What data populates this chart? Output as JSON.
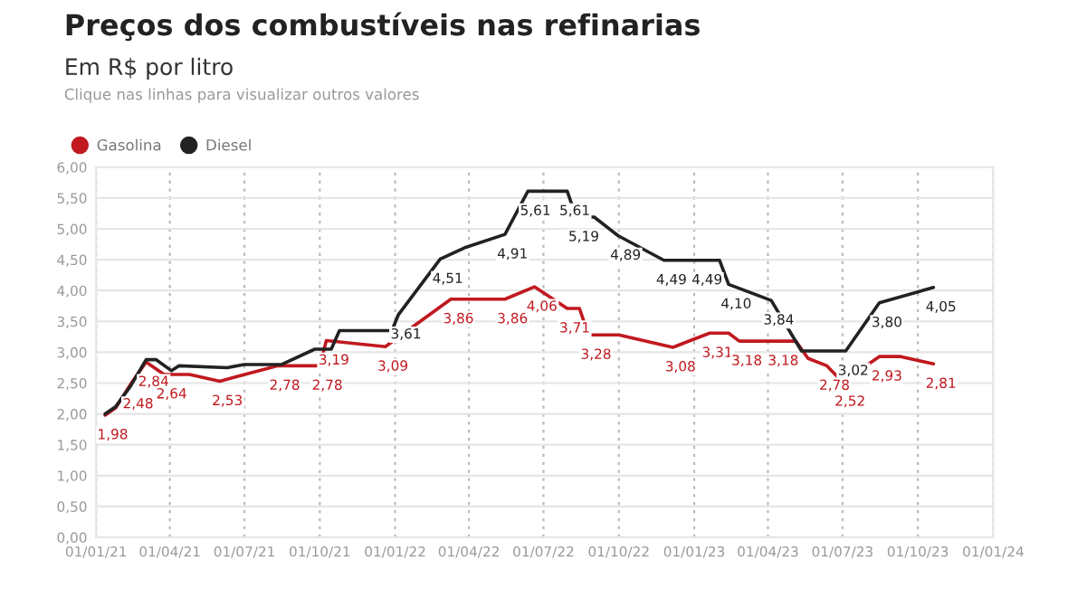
{
  "chart_data": {
    "type": "line",
    "title": "Preços dos combustíveis nas refinarias",
    "subtitle": "Em R$ por litro",
    "annotations": [
      "Clique nas linhas para visualizar outros valores"
    ],
    "legend": "top left",
    "grid": true,
    "marker": "none",
    "line_style": "solid",
    "xlim": [
      "2021-01-01",
      "2024-01-01"
    ],
    "xticks": [
      {
        "value": "2021-01-01",
        "label": "01/01/21"
      },
      {
        "value": "2021-04-01",
        "label": "01/04/21"
      },
      {
        "value": "2021-07-01",
        "label": "01/07/21"
      },
      {
        "value": "2021-10-01",
        "label": "01/10/21"
      },
      {
        "value": "2022-01-01",
        "label": "01/01/22"
      },
      {
        "value": "2022-04-01",
        "label": "01/04/22"
      },
      {
        "value": "2022-07-01",
        "label": "01/07/22"
      },
      {
        "value": "2022-10-01",
        "label": "01/10/22"
      },
      {
        "value": "2023-01-01",
        "label": "01/01/23"
      },
      {
        "value": "2023-04-01",
        "label": "01/04/23"
      },
      {
        "value": "2023-07-01",
        "label": "01/07/23"
      },
      {
        "value": "2023-10-01",
        "label": "01/10/23"
      },
      {
        "value": "2024-01-01",
        "label": "01/01/24"
      }
    ],
    "ylim": [
      0,
      6
    ],
    "yticks": [
      {
        "value": 0,
        "label": "0,00"
      },
      {
        "value": 0.5,
        "label": "0,50"
      },
      {
        "value": 1,
        "label": "1,00"
      },
      {
        "value": 1.5,
        "label": "1,50"
      },
      {
        "value": 2,
        "label": "2,00"
      },
      {
        "value": 2.5,
        "label": "2,50"
      },
      {
        "value": 3,
        "label": "3,00"
      },
      {
        "value": 3.5,
        "label": "3,50"
      },
      {
        "value": 4,
        "label": "4,00"
      },
      {
        "value": 4.5,
        "label": "4,50"
      },
      {
        "value": 5,
        "label": "5,00"
      },
      {
        "value": 5.5,
        "label": "5,50"
      },
      {
        "value": 6,
        "label": "6,00"
      }
    ],
    "series": [
      {
        "name": "Gasolina",
        "color": "#c0191f",
        "x": [
          "2021-01-12",
          "2021-01-25",
          "2021-02-12",
          "2021-03-03",
          "2021-03-25",
          "2021-04-25",
          "2021-06-01",
          "2021-08-10",
          "2021-10-01",
          "2021-10-09",
          "2021-12-20",
          "2022-03-10",
          "2022-05-15",
          "2022-06-20",
          "2022-07-30",
          "2022-08-14",
          "2022-08-25",
          "2022-10-01",
          "2022-12-06",
          "2023-01-20",
          "2023-02-12",
          "2023-02-25",
          "2023-05-05",
          "2023-05-20",
          "2023-06-12",
          "2023-07-01",
          "2023-08-15",
          "2023-09-10",
          "2023-10-20"
        ],
        "values": [
          1.98,
          2.1,
          2.48,
          2.84,
          2.64,
          2.64,
          2.53,
          2.78,
          2.78,
          3.19,
          3.09,
          3.86,
          3.86,
          4.06,
          3.71,
          3.71,
          3.28,
          3.28,
          3.08,
          3.31,
          3.31,
          3.18,
          3.18,
          2.9,
          2.78,
          2.52,
          2.93,
          2.93,
          2.81
        ],
        "value_labels": [
          "1,98",
          null,
          "2,48",
          "2,84",
          "2,64",
          null,
          "2,53",
          "2,78",
          "2,78",
          "3,19",
          "3,09",
          "3,86",
          "3,86",
          "4,06",
          "3,71",
          null,
          "3,28",
          null,
          "3,08",
          "3,31",
          null,
          "3,18",
          "3,18",
          null,
          "2,78",
          "2,52",
          "2,93",
          null,
          "2,81"
        ]
      },
      {
        "name": "Diesel",
        "color": "#222222",
        "x": [
          "2021-01-12",
          "2021-01-25",
          "2021-02-12",
          "2021-03-03",
          "2021-03-15",
          "2021-04-03",
          "2021-04-12",
          "2021-06-10",
          "2021-07-01",
          "2021-08-15",
          "2021-09-25",
          "2021-10-15",
          "2021-10-25",
          "2021-12-28",
          "2022-01-05",
          "2022-02-25",
          "2022-03-28",
          "2022-05-15",
          "2022-06-12",
          "2022-07-30",
          "2022-08-10",
          "2022-09-01",
          "2022-09-30",
          "2022-11-25",
          "2023-02-01",
          "2023-02-12",
          "2023-04-05",
          "2023-05-12",
          "2023-07-05",
          "2023-08-15",
          "2023-10-20"
        ],
        "values": [
          2.0,
          2.12,
          2.45,
          2.88,
          2.88,
          2.7,
          2.78,
          2.75,
          2.8,
          2.8,
          3.05,
          3.05,
          3.35,
          3.35,
          3.61,
          4.51,
          4.7,
          4.91,
          5.61,
          5.61,
          5.19,
          5.19,
          4.89,
          4.49,
          4.49,
          4.1,
          3.84,
          3.02,
          3.02,
          3.8,
          4.05
        ],
        "value_labels": [
          null,
          null,
          null,
          null,
          null,
          null,
          null,
          null,
          null,
          null,
          null,
          null,
          null,
          null,
          "3,61",
          "4,51",
          null,
          "4,91",
          "5,61",
          "5,61",
          "5,19",
          null,
          "4,89",
          "4,49",
          "4,49",
          "4,10",
          "3,84",
          null,
          "3,02",
          "3,80",
          "4,05"
        ]
      }
    ]
  }
}
